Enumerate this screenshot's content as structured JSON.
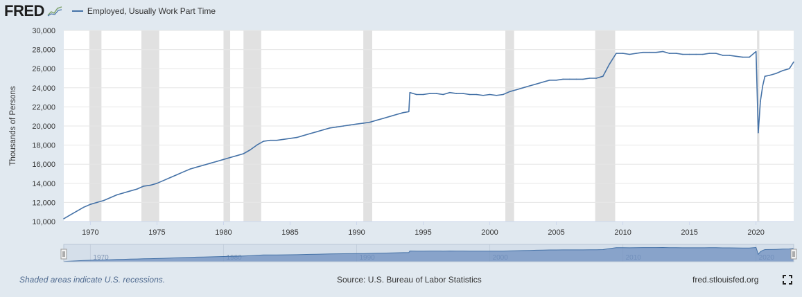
{
  "header": {
    "logo_text": "FRED",
    "series_label": "Employed, Usually Work Part Time"
  },
  "footer": {
    "recession_note": "Shaded areas indicate U.S. recessions.",
    "source": "Source: U.S. Bureau of Labor Statistics",
    "url": "fred.stlouisfed.org"
  },
  "colors": {
    "series": "#4572a7",
    "recession": "#e1e1e1",
    "background": "#e1e9f0",
    "plot": "#ffffff",
    "navigator_fill": "#6d8fbf"
  },
  "icons": {
    "logo_graph": "fred-sparkline-icon",
    "fullscreen": "fullscreen-icon",
    "navigator_handles": "drag-handle-icon"
  },
  "chart_data": {
    "type": "line",
    "title": "",
    "ylabel": "Thousands of Persons",
    "xlabel": "",
    "ylim": [
      10000,
      30000
    ],
    "yticks": [
      10000,
      12000,
      14000,
      16000,
      18000,
      20000,
      22000,
      24000,
      26000,
      28000,
      30000
    ],
    "ytick_labels": [
      "10,000",
      "12,000",
      "14,000",
      "16,000",
      "18,000",
      "20,000",
      "22,000",
      "24,000",
      "26,000",
      "28,000",
      "30,000"
    ],
    "xlim": [
      1968.0,
      2022.83
    ],
    "xticks": [
      1970,
      1975,
      1980,
      1985,
      1990,
      1995,
      2000,
      2005,
      2010,
      2015,
      2020
    ],
    "xtick_labels": [
      "1970",
      "1975",
      "1980",
      "1985",
      "1990",
      "1995",
      "2000",
      "2005",
      "2010",
      "2015",
      "2020"
    ],
    "navigator_ticks": [
      "1970",
      "1980",
      "1990",
      "2000",
      "2010",
      "2020"
    ],
    "grid": true,
    "legend": "top-left",
    "recessions": [
      [
        1969.92,
        1970.83
      ],
      [
        1973.83,
        1975.17
      ],
      [
        1980.0,
        1980.5
      ],
      [
        1981.5,
        1982.83
      ],
      [
        1990.5,
        1991.17
      ],
      [
        2001.17,
        2001.83
      ],
      [
        2007.92,
        2009.42
      ],
      [
        2020.08,
        2020.25
      ]
    ],
    "series": [
      {
        "name": "Employed, Usually Work Part Time",
        "x": [
          1968.0,
          1968.5,
          1969.0,
          1969.5,
          1970.0,
          1970.5,
          1971.0,
          1971.5,
          1972.0,
          1972.5,
          1973.0,
          1973.5,
          1974.0,
          1974.5,
          1975.0,
          1975.5,
          1976.0,
          1976.5,
          1977.0,
          1977.5,
          1978.0,
          1978.5,
          1979.0,
          1979.5,
          1980.0,
          1980.5,
          1981.0,
          1981.5,
          1982.0,
          1982.5,
          1983.0,
          1983.5,
          1984.0,
          1984.5,
          1985.0,
          1985.5,
          1986.0,
          1986.5,
          1987.0,
          1987.5,
          1988.0,
          1988.5,
          1989.0,
          1989.5,
          1990.0,
          1990.5,
          1991.0,
          1991.5,
          1992.0,
          1992.5,
          1993.0,
          1993.5,
          1993.92,
          1994.0,
          1994.5,
          1995.0,
          1995.5,
          1996.0,
          1996.5,
          1997.0,
          1997.5,
          1998.0,
          1998.5,
          1999.0,
          1999.5,
          2000.0,
          2000.5,
          2001.0,
          2001.5,
          2002.0,
          2002.5,
          2003.0,
          2003.5,
          2004.0,
          2004.5,
          2005.0,
          2005.5,
          2006.0,
          2006.5,
          2007.0,
          2007.5,
          2008.0,
          2008.5,
          2009.0,
          2009.5,
          2010.0,
          2010.5,
          2011.0,
          2011.5,
          2012.0,
          2012.5,
          2013.0,
          2013.5,
          2014.0,
          2014.5,
          2015.0,
          2015.5,
          2016.0,
          2016.5,
          2017.0,
          2017.5,
          2018.0,
          2018.5,
          2019.0,
          2019.5,
          2020.0,
          2020.17,
          2020.33,
          2020.5,
          2020.67,
          2021.0,
          2021.5,
          2022.0,
          2022.5,
          2022.83
        ],
        "values": [
          10300,
          10700,
          11100,
          11500,
          11800,
          12000,
          12200,
          12500,
          12800,
          13000,
          13200,
          13400,
          13700,
          13800,
          14000,
          14300,
          14600,
          14900,
          15200,
          15500,
          15700,
          15900,
          16100,
          16300,
          16500,
          16700,
          16900,
          17100,
          17500,
          18000,
          18400,
          18500,
          18500,
          18600,
          18700,
          18800,
          19000,
          19200,
          19400,
          19600,
          19800,
          19900,
          20000,
          20100,
          20200,
          20300,
          20400,
          20600,
          20800,
          21000,
          21200,
          21400,
          21500,
          23500,
          23300,
          23300,
          23400,
          23400,
          23300,
          23500,
          23400,
          23400,
          23300,
          23300,
          23200,
          23300,
          23200,
          23300,
          23600,
          23800,
          24000,
          24200,
          24400,
          24600,
          24800,
          24800,
          24900,
          24900,
          24900,
          24900,
          25000,
          25000,
          25200,
          26500,
          27600,
          27600,
          27500,
          27600,
          27700,
          27700,
          27700,
          27800,
          27600,
          27600,
          27500,
          27500,
          27500,
          27500,
          27600,
          27600,
          27400,
          27400,
          27300,
          27200,
          27200,
          27800,
          19300,
          22600,
          24200,
          25200,
          25300,
          25500,
          25800,
          26000,
          26700
        ]
      }
    ]
  }
}
